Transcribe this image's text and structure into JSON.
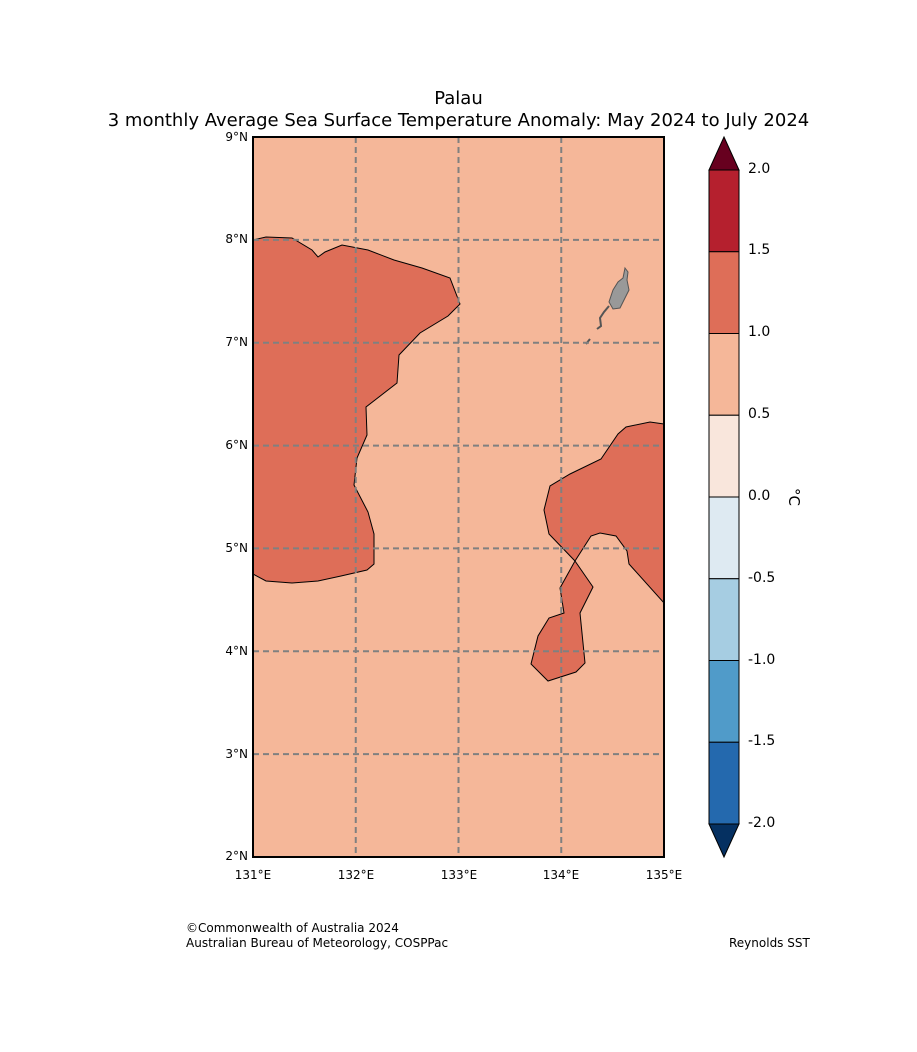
{
  "title": {
    "line1": "Palau",
    "line2": "3 monthly Average Sea Surface Temperature Anomaly: May 2024 to July 2024"
  },
  "map": {
    "lon_range": [
      131,
      135
    ],
    "lat_range": [
      2,
      9
    ],
    "lon_ticks": [
      "131°E",
      "132°E",
      "133°E",
      "134°E",
      "135°E"
    ],
    "lat_ticks": [
      "9°N",
      "8°N",
      "7°N",
      "6°N",
      "5°N",
      "4°N",
      "3°N",
      "2°N"
    ],
    "background_anomaly_range": "0.5 to 1.0",
    "regions": [
      {
        "name": "western warm patch",
        "anomaly_range": "1.0 to 1.5"
      },
      {
        "name": "eastern warm patch",
        "anomaly_range": "1.0 to 1.5"
      }
    ],
    "land": "Palau islands"
  },
  "colorbar": {
    "unit": "°C",
    "labels": [
      "2.0",
      "1.5",
      "1.0",
      "0.5",
      "0.0",
      "-0.5",
      "-1.0",
      "-1.5",
      "-2.0"
    ],
    "colors": [
      "#b5202e",
      "#de6e58",
      "#f5b799",
      "#f9e6dc",
      "#deeaf2",
      "#a6cde2",
      "#509bc9",
      "#2469ae"
    ],
    "over_color": "#67001f",
    "under_color": "#053061"
  },
  "colors": {
    "ocean_fill": "#f5b799",
    "warm_fill": "#de6e58",
    "land_fill": "#999999",
    "grid": "#808080"
  },
  "footer": {
    "copyright": "©Commonwealth of Australia 2024",
    "agency": "Australian Bureau of Meteorology, COSPPac",
    "source": "Reynolds SST"
  }
}
